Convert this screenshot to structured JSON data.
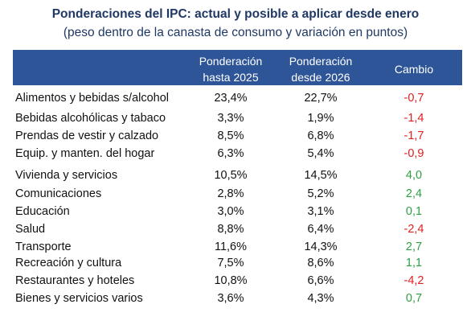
{
  "title": "Ponderaciones del IPC: actual y posible a aplicar desde enero",
  "subtitle": "(peso dentro de la canasta de consumo y variación en puntos)",
  "colors": {
    "header_bg": "#2e5597",
    "title": "#1f3864",
    "positive": "#2ea043",
    "negative": "#e02020"
  },
  "chart_data": {
    "type": "table",
    "columns": [
      {
        "line1": "Ponderación",
        "line2": "hasta 2025"
      },
      {
        "line1": "Ponderación",
        "line2": "desde 2026"
      },
      {
        "line1": "Cambio",
        "line2": ""
      }
    ],
    "rows": [
      {
        "name": "Alimentos y bebidas s/alcohol",
        "p2025": "23,4%",
        "p2026": "22,7%",
        "change": "-0,7",
        "change_value": -0.7
      },
      {
        "name": "Bebidas alcohólicas y tabaco",
        "p2025": "3,3%",
        "p2026": "1,9%",
        "change": "-1,4",
        "change_value": -1.4
      },
      {
        "name": "Prendas de vestir y calzado",
        "p2025": "8,5%",
        "p2026": "6,8%",
        "change": "-1,7",
        "change_value": -1.7
      },
      {
        "name": "Equip. y manten. del hogar",
        "p2025": "6,3%",
        "p2026": "5,4%",
        "change": "-0,9",
        "change_value": -0.9
      },
      {
        "name": "Vivienda y servicios",
        "p2025": "10,5%",
        "p2026": "14,5%",
        "change": "4,0",
        "change_value": 4.0
      },
      {
        "name": "Comunicaciones",
        "p2025": "2,8%",
        "p2026": "5,2%",
        "change": "2,4",
        "change_value": 2.4
      },
      {
        "name": "Educación",
        "p2025": "3,0%",
        "p2026": "3,1%",
        "change": "0,1",
        "change_value": 0.1
      },
      {
        "name": "Salud",
        "p2025": "8,8%",
        "p2026": "6,4%",
        "change": "-2,4",
        "change_value": -2.4
      },
      {
        "name": "Transporte",
        "p2025": "11,6%",
        "p2026": "14,3%",
        "change": "2,7",
        "change_value": 2.7
      },
      {
        "name": "Recreación y cultura",
        "p2025": "7,5%",
        "p2026": "8,6%",
        "change": "1,1",
        "change_value": 1.1
      },
      {
        "name": "Restaurantes y hoteles",
        "p2025": "10,8%",
        "p2026": "6,6%",
        "change": "-4,2",
        "change_value": -4.2
      },
      {
        "name": "Bienes y servicios varios",
        "p2025": "3,6%",
        "p2026": "4,3%",
        "change": "0,7",
        "change_value": 0.7
      }
    ]
  }
}
